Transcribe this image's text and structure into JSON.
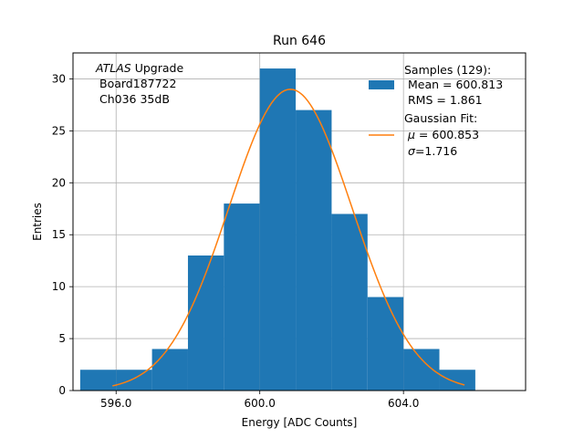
{
  "chart_data": {
    "type": "bar",
    "title": "Run 646",
    "xlabel": "Energy [ADC Counts]",
    "ylabel": "Entries",
    "xlim": [
      594.8,
      607.4
    ],
    "ylim": [
      0,
      32.5
    ],
    "xticks": [
      596.0,
      600.0,
      604.0
    ],
    "xtick_labels": [
      "596.0",
      "600.0",
      "604.0"
    ],
    "yticks": [
      0,
      5,
      10,
      15,
      20,
      25,
      30
    ],
    "ytick_labels": [
      "0",
      "5",
      "10",
      "15",
      "20",
      "25",
      "30"
    ],
    "grid": true,
    "bar_color": "#1f77b4",
    "fit_color": "#ff7f0e",
    "bins": [
      {
        "x0": 595.0,
        "x1": 596.0,
        "value": 2
      },
      {
        "x0": 596.0,
        "x1": 597.0,
        "value": 2
      },
      {
        "x0": 597.0,
        "x1": 598.0,
        "value": 4
      },
      {
        "x0": 598.0,
        "x1": 599.0,
        "value": 13
      },
      {
        "x0": 599.0,
        "x1": 600.0,
        "value": 18
      },
      {
        "x0": 600.0,
        "x1": 601.0,
        "value": 31
      },
      {
        "x0": 601.0,
        "x1": 602.0,
        "value": 27
      },
      {
        "x0": 602.0,
        "x1": 603.0,
        "value": 17
      },
      {
        "x0": 603.0,
        "x1": 604.0,
        "value": 9
      },
      {
        "x0": 604.0,
        "x1": 605.0,
        "value": 4
      },
      {
        "x0": 605.0,
        "x1": 606.0,
        "value": 2
      }
    ],
    "fit": {
      "mu": 600.853,
      "sigma": 1.716,
      "amplitude": 29.0,
      "x_range": [
        595.9,
        605.7
      ]
    },
    "annotation": {
      "atlas_italic": "ATLAS",
      "atlas_rest": " Upgrade",
      "line2": "Board187722",
      "line3": "Ch036 35dB"
    },
    "legend": {
      "position": "top-right",
      "samples_title": "Samples (129):",
      "samples_mean": "Mean = 600.813",
      "samples_rms": "RMS = 1.861",
      "fit_title": "Gaussian Fit:",
      "fit_mu_symbol": "μ",
      "fit_mu_value": " = 600.853",
      "fit_sigma_symbol": "σ",
      "fit_sigma_value": "=1.716"
    }
  }
}
